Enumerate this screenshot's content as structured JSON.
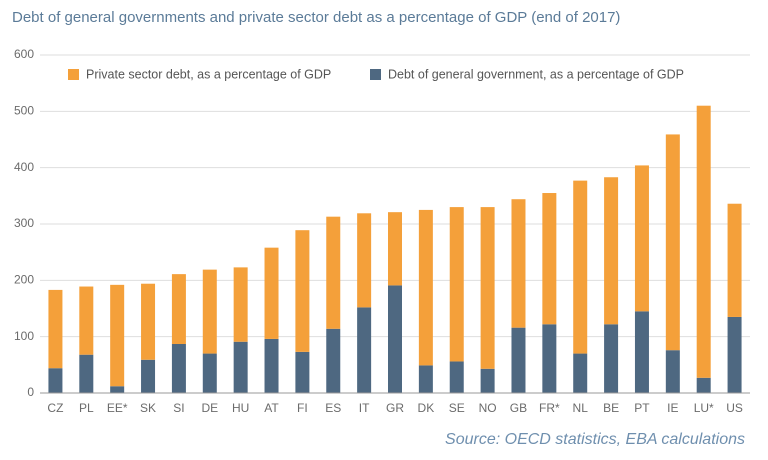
{
  "chart_data": {
    "type": "stacked_bar",
    "title": "Debt of general governments and private sector debt as a percentage of GDP (end of 2017)",
    "source": "Source: OECD statistics, EBA calculations",
    "categories": [
      "CZ",
      "PL",
      "EE*",
      "SK",
      "SI",
      "DE",
      "HU",
      "AT",
      "FI",
      "ES",
      "IT",
      "GR",
      "DK",
      "SE",
      "NO",
      "GB",
      "FR*",
      "NL",
      "BE",
      "PT",
      "IE",
      "LU*",
      "US"
    ],
    "series": [
      {
        "name": "Private sector debt, as a percentage of GDP",
        "color": "#f4a03a",
        "values": [
          139,
          121,
          180,
          135,
          124,
          149,
          132,
          162,
          216,
          199,
          167,
          130,
          276,
          274,
          287,
          228,
          233,
          307,
          261,
          259,
          383,
          483,
          201
        ]
      },
      {
        "name": "Debt of general government, as a percentage of GDP",
        "color": "#4e6881",
        "values": [
          44,
          68,
          12,
          59,
          87,
          70,
          91,
          96,
          73,
          114,
          152,
          191,
          49,
          56,
          43,
          116,
          122,
          70,
          122,
          145,
          76,
          27,
          135
        ]
      }
    ],
    "ylim": [
      0,
      600
    ],
    "yticks": [
      0,
      100,
      200,
      300,
      400,
      500,
      600
    ],
    "grid": true
  }
}
